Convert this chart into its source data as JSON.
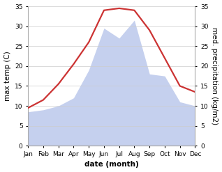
{
  "months": [
    "Jan",
    "Feb",
    "Mar",
    "Apr",
    "May",
    "Jun",
    "Jul",
    "Aug",
    "Sep",
    "Oct",
    "Nov",
    "Dec"
  ],
  "temperature": [
    9.5,
    11.5,
    15.5,
    20.5,
    26.0,
    34.0,
    34.5,
    34.0,
    29.0,
    22.0,
    15.0,
    13.5
  ],
  "precipitation": [
    8.5,
    9.0,
    10.0,
    12.0,
    19.0,
    29.5,
    27.0,
    31.5,
    18.0,
    17.5,
    11.0,
    10.0
  ],
  "temp_color": "#cc3333",
  "precip_color": "#c5d0ee",
  "ylim_left": [
    0,
    35
  ],
  "ylim_right": [
    0,
    35
  ],
  "yticks": [
    0,
    5,
    10,
    15,
    20,
    25,
    30,
    35
  ],
  "xlabel": "date (month)",
  "ylabel_left": "max temp (C)",
  "ylabel_right": "med. precipitation (kg/m2)",
  "background_color": "#ffffff",
  "grid_color": "#cccccc",
  "tick_fontsize": 6.5,
  "label_fontsize": 7.5,
  "spine_color": "#aaaaaa"
}
